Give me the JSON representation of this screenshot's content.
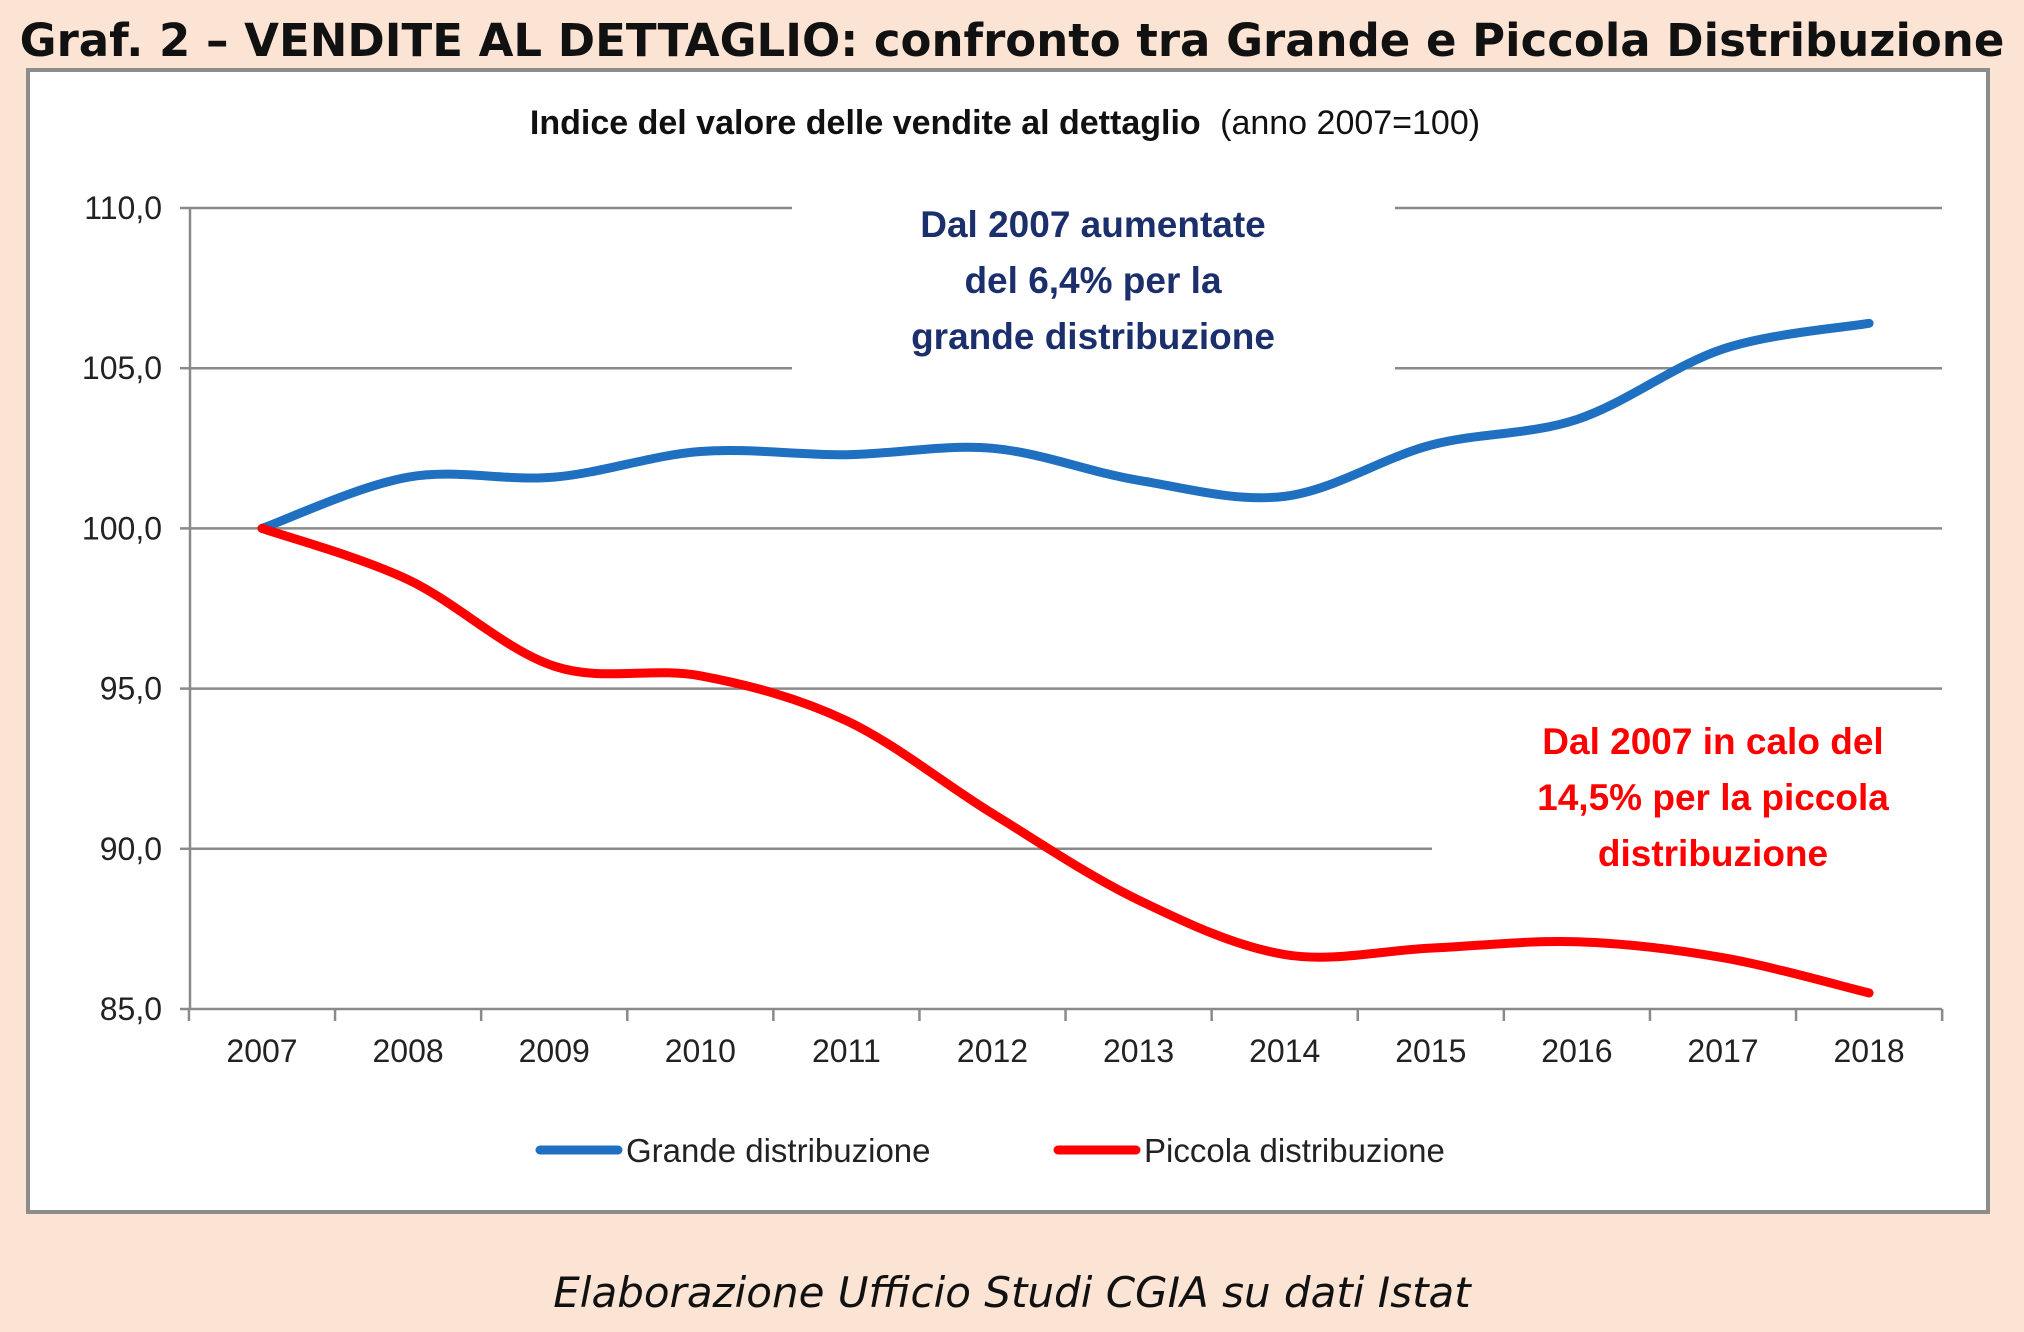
{
  "header": {
    "title": "Graf. 2 – VENDITE AL DETTAGLIO: confronto tra Grande e Piccola Distribuzione"
  },
  "footer": {
    "source": "Elaborazione Ufficio Studi CGIA su dati Istat"
  },
  "chart_data": {
    "type": "line",
    "title_bold": "Indice del valore delle vendite al dettaglio",
    "title_normal": "(anno 2007=100)",
    "x": [
      "2007",
      "2008",
      "2009",
      "2010",
      "2011",
      "2012",
      "2013",
      "2014",
      "2015",
      "2016",
      "2017",
      "2018"
    ],
    "ylim": [
      85,
      110
    ],
    "y_ticks": [
      85,
      90,
      95,
      100,
      105,
      110
    ],
    "y_tick_labels": [
      "85,0",
      "90,0",
      "95,0",
      "100,0",
      "105,0",
      "110,0"
    ],
    "grid": true,
    "legend_position": "bottom",
    "series": [
      {
        "name": "Grande distribuzione",
        "color": "#1f70c1",
        "values": [
          100.0,
          101.6,
          101.6,
          102.4,
          102.3,
          102.5,
          101.5,
          101.0,
          102.6,
          103.4,
          105.6,
          106.4
        ]
      },
      {
        "name": "Piccola distribuzione",
        "color": "#ff0000",
        "values": [
          100.0,
          98.4,
          95.7,
          95.4,
          94.0,
          91.1,
          88.4,
          86.7,
          86.9,
          87.1,
          86.6,
          85.5
        ]
      }
    ],
    "annotations": [
      {
        "series": "Grande distribuzione",
        "color": "#1a2f6b",
        "lines": [
          "Dal 2007 aumentate",
          "del 6,4% per la",
          "grande distribuzione"
        ]
      },
      {
        "series": "Piccola distribuzione",
        "color": "#ff0000",
        "lines": [
          "Dal 2007 in calo del",
          "14,5% per la piccola",
          "distribuzione"
        ]
      }
    ]
  }
}
